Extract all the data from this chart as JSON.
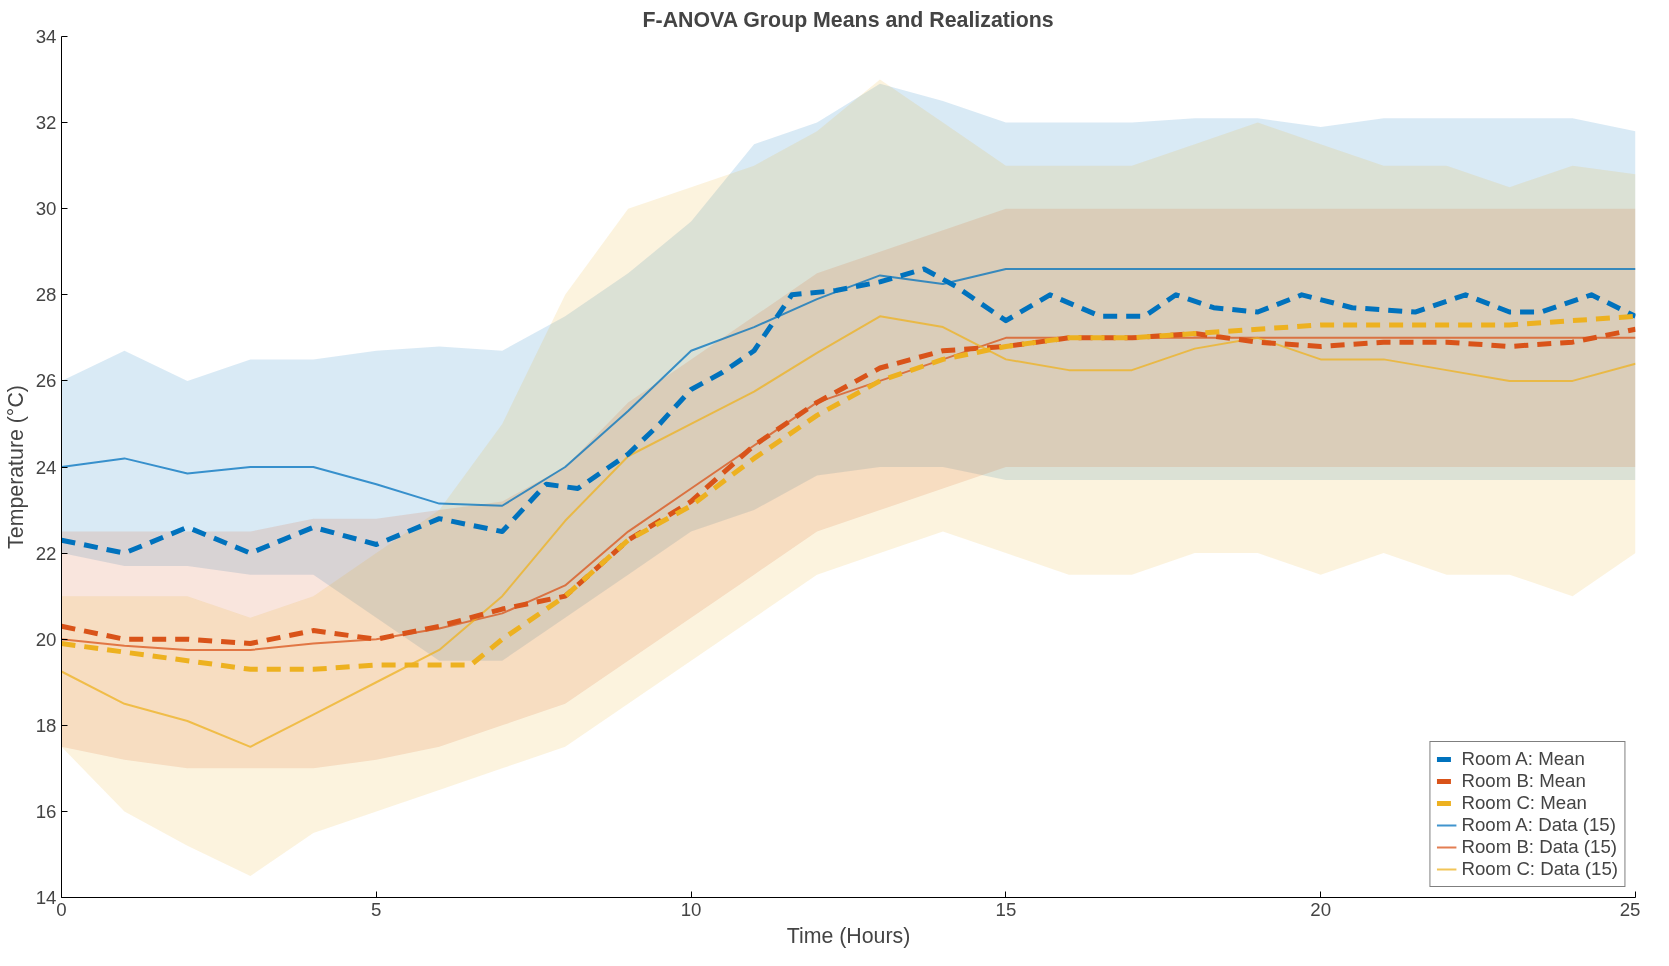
{
  "chart_data": {
    "type": "line",
    "title": "F-ANOVA Group Means and Realizations",
    "xlabel": "Time (Hours)",
    "ylabel": "Temperature (°C)",
    "xlim": [
      0,
      25
    ],
    "ylim": [
      14,
      34
    ],
    "xticks": [
      0,
      5,
      10,
      15,
      20,
      25
    ],
    "yticks": [
      14,
      16,
      18,
      20,
      22,
      24,
      26,
      28,
      30,
      32,
      34
    ],
    "grid": false,
    "legend": "bottom right",
    "line_style": "dashed",
    "series": [
      {
        "name": "Room A: Mean",
        "color": "#0072bd",
        "x": [
          0,
          1,
          2,
          3,
          4,
          5,
          6,
          7,
          7.7,
          8.2,
          9,
          9.5,
          10,
          10.5,
          11,
          11.6,
          12.3,
          13,
          13.7,
          14.2,
          15,
          15.7,
          16.5,
          17.2,
          17.7,
          18.3,
          19,
          19.7,
          20.5,
          21.5,
          22.3,
          23,
          23.5,
          24.3,
          25
        ],
        "values": [
          22.3,
          22.0,
          22.6,
          22.0,
          22.6,
          22.2,
          22.8,
          22.5,
          23.6,
          23.5,
          24.3,
          25.0,
          25.8,
          26.2,
          26.7,
          28.0,
          28.1,
          28.3,
          28.6,
          28.2,
          27.4,
          28.0,
          27.5,
          27.5,
          28.0,
          27.7,
          27.6,
          28.0,
          27.7,
          27.6,
          28.0,
          27.6,
          27.6,
          28.0,
          27.5
        ]
      },
      {
        "name": "Room B: Mean",
        "color": "#d95319",
        "x": [
          0,
          1,
          2,
          3,
          4,
          5,
          6,
          7,
          8,
          9,
          10,
          11,
          12,
          13,
          14,
          15,
          16,
          17,
          18,
          19,
          20,
          21,
          22,
          23,
          24,
          25
        ],
        "values": [
          20.3,
          20.0,
          20.0,
          19.9,
          20.2,
          20.0,
          20.3,
          20.7,
          21.0,
          22.3,
          23.2,
          24.5,
          25.5,
          26.3,
          26.7,
          26.8,
          27.0,
          27.0,
          27.1,
          26.9,
          26.8,
          26.9,
          26.9,
          26.8,
          26.9,
          27.2
        ]
      },
      {
        "name": "Room C: Mean",
        "color": "#edb120",
        "x": [
          0,
          1,
          2,
          3,
          4,
          5,
          6,
          6.5,
          7,
          8,
          9,
          10,
          11,
          12,
          13,
          14,
          15,
          16,
          17,
          18,
          19,
          20,
          21,
          22,
          23,
          24,
          25
        ],
        "values": [
          19.9,
          19.7,
          19.5,
          19.3,
          19.3,
          19.4,
          19.4,
          19.4,
          20.0,
          21.0,
          22.3,
          23.1,
          24.2,
          25.2,
          26.0,
          26.5,
          26.8,
          27.0,
          27.0,
          27.1,
          27.2,
          27.3,
          27.3,
          27.3,
          27.3,
          27.4,
          27.5
        ]
      },
      {
        "name": "Room A: Data (15)",
        "type": "line",
        "line_style": "solid",
        "color": "#0072bd",
        "x": [
          0,
          1,
          2,
          3,
          4,
          5,
          6,
          7,
          8,
          9,
          10,
          11,
          12,
          13,
          14,
          15,
          16,
          17,
          18,
          19,
          20,
          21,
          22,
          23,
          24,
          25
        ],
        "values": [
          24,
          24.2,
          23.85,
          24,
          24,
          23.6,
          23.15,
          23.1,
          24,
          25.3,
          26.7,
          27.25,
          27.9,
          28.45,
          28.25,
          28.6,
          28.6,
          28.6,
          28.6,
          28.6,
          28.6,
          28.6,
          28.6,
          28.6,
          28.6,
          28.6
        ],
        "lower": [
          22,
          21.7,
          21.7,
          21.5,
          21.5,
          20.5,
          19.5,
          19.5,
          20.5,
          21.5,
          22.5,
          23.0,
          23.8,
          24.0,
          24.0,
          23.7,
          23.7,
          23.7,
          23.7,
          23.7,
          23.7,
          23.7,
          23.7,
          23.7,
          23.7,
          23.7
        ],
        "upper": [
          26,
          26.7,
          26,
          26.5,
          26.5,
          26.7,
          26.8,
          26.7,
          27.5,
          28.5,
          29.7,
          31.5,
          32,
          32.9,
          32.5,
          32,
          32,
          32,
          32.1,
          32.1,
          31.9,
          32.1,
          32.1,
          32.1,
          32.1,
          31.8
        ]
      },
      {
        "name": "Room B: Data (15)",
        "type": "line",
        "line_style": "solid",
        "color": "#d95319",
        "x": [
          0,
          1,
          2,
          3,
          4,
          5,
          6,
          7,
          8,
          9,
          10,
          11,
          12,
          13,
          14,
          15,
          16,
          17,
          18,
          19,
          20,
          21,
          22,
          23,
          24,
          25
        ],
        "values": [
          20,
          19.85,
          19.75,
          19.75,
          19.9,
          20,
          20.25,
          20.6,
          21.25,
          22.5,
          23.5,
          24.5,
          25.5,
          26,
          26.5,
          27,
          27,
          27,
          27,
          27,
          27,
          27,
          27,
          27,
          27,
          27
        ],
        "lower": [
          17.5,
          17.2,
          17,
          17,
          17,
          17.2,
          17.5,
          18,
          18.5,
          19.5,
          20.5,
          21.5,
          22.5,
          23,
          23.5,
          24,
          24,
          24,
          24,
          24,
          24,
          24,
          24,
          24,
          24,
          24
        ],
        "upper": [
          22.5,
          22.5,
          22.5,
          22.5,
          22.8,
          22.8,
          23,
          23.2,
          24,
          25.5,
          26.5,
          27.5,
          28.5,
          29,
          29.5,
          30,
          30,
          30,
          30,
          30,
          30,
          30,
          30,
          30,
          30,
          30
        ]
      },
      {
        "name": "Room C: Data (15)",
        "type": "line",
        "line_style": "solid",
        "color": "#edb120",
        "x": [
          0,
          1,
          2,
          3,
          4,
          5,
          6,
          7,
          8,
          9,
          10,
          11,
          12,
          13,
          14,
          15,
          16,
          17,
          18,
          19,
          20,
          21,
          22,
          23,
          24,
          25
        ],
        "values": [
          19.25,
          18.5,
          18.1,
          17.5,
          18.25,
          19,
          19.75,
          21,
          22.75,
          24.25,
          25,
          25.75,
          26.65,
          27.5,
          27.25,
          26.5,
          26.25,
          26.25,
          26.75,
          27,
          26.5,
          26.5,
          26.25,
          26,
          26,
          26.4
        ],
        "lower": [
          17.5,
          16,
          15.2,
          14.5,
          15.5,
          16,
          16.5,
          17,
          17.5,
          18.5,
          19.5,
          20.5,
          21.5,
          22,
          22.5,
          22.0,
          21.5,
          21.5,
          22,
          22,
          21.5,
          22,
          21.5,
          21.5,
          21,
          22
        ],
        "upper": [
          21,
          21,
          21,
          20.5,
          21,
          22,
          23,
          25,
          28,
          30,
          30.5,
          31,
          31.8,
          33,
          32,
          31,
          31,
          31,
          31.5,
          32,
          31.5,
          31,
          31,
          30.5,
          31,
          30.8
        ]
      }
    ]
  }
}
